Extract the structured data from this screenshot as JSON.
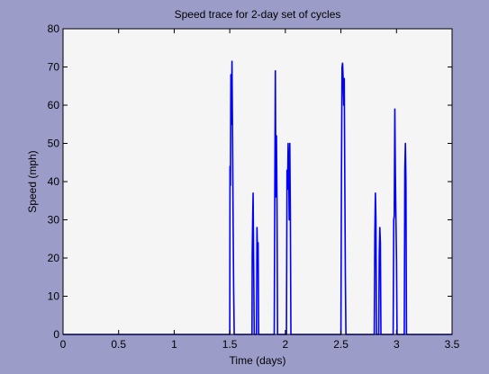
{
  "chart_data": {
    "type": "line",
    "title": "Speed trace for 2-day set of cycles",
    "xlabel": "Time (days)",
    "ylabel": "Speed (mph)",
    "xlim": [
      0,
      3.5
    ],
    "ylim": [
      0,
      80
    ],
    "xticks": [
      "0",
      "0.5",
      "1",
      "1.5",
      "2",
      "2.5",
      "3",
      "3.5"
    ],
    "yticks": [
      "0",
      "10",
      "20",
      "30",
      "40",
      "50",
      "60",
      "70",
      "80"
    ],
    "grid": false,
    "legend": "none",
    "colors": {
      "figure_background": "#9c9cc9",
      "plot_background": "#f5f5f5",
      "line": "#0000ff"
    },
    "series": [
      {
        "x": [
          0,
          1.5,
          1.502,
          1.506,
          1.51,
          1.515,
          1.52,
          1.525,
          1.53,
          1.535,
          1.54,
          1.55,
          1.7,
          1.702,
          1.706,
          1.71,
          1.72,
          1.73,
          1.74,
          1.745,
          1.75,
          1.755,
          1.76,
          1.9,
          1.905,
          1.91,
          1.915,
          1.92,
          1.925,
          1.93,
          1.935,
          1.94,
          2.01,
          2.015,
          2.02,
          2.025,
          2.03,
          2.035,
          2.04,
          2.045,
          2.05,
          2.055,
          2.06,
          2.5,
          2.505,
          2.51,
          2.515,
          2.52,
          2.525,
          2.53,
          2.535,
          2.54,
          2.545,
          2.55,
          2.8,
          2.805,
          2.81,
          2.815,
          2.82,
          2.84,
          2.845,
          2.85,
          2.855,
          2.86,
          2.97,
          2.975,
          2.98,
          2.985,
          2.99,
          2.995,
          3.0,
          3.005,
          3.01,
          3.07,
          3.075,
          3.08,
          3.085,
          3.09,
          3.095,
          3.1,
          3.5
        ],
        "y": [
          0,
          0,
          44,
          39,
          68,
          55,
          71.5,
          52,
          30,
          12,
          0,
          0,
          0,
          21,
          30,
          37,
          0,
          0,
          0,
          28,
          20,
          24,
          0,
          0,
          37,
          69,
          36,
          52,
          34,
          0,
          0,
          0,
          0,
          43,
          38,
          50,
          43,
          30,
          50,
          32,
          0,
          0,
          0,
          0,
          43,
          70,
          71,
          67,
          60,
          67,
          40,
          15,
          0,
          0,
          0,
          26,
          37,
          30,
          0,
          0,
          21,
          28,
          24,
          0,
          0,
          30,
          31,
          59,
          42,
          30,
          20,
          0,
          0,
          0,
          43,
          50,
          40,
          0,
          0,
          0,
          0
        ]
      }
    ]
  }
}
